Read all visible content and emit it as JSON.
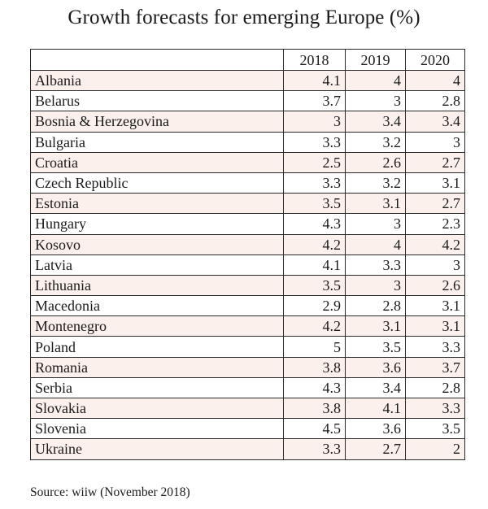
{
  "title": "Growth forecasts for emerging Europe (%)",
  "table": {
    "columns": [
      "",
      "2018",
      "2019",
      "2020"
    ],
    "rows": [
      {
        "country": "Albania",
        "values": [
          "4.1",
          "4",
          "4"
        ]
      },
      {
        "country": "Belarus",
        "values": [
          "3.7",
          "3",
          "2.8"
        ]
      },
      {
        "country": "Bosnia & Herzegovina",
        "values": [
          "3",
          "3.4",
          "3.4"
        ]
      },
      {
        "country": "Bulgaria",
        "values": [
          "3.3",
          "3.2",
          "3"
        ]
      },
      {
        "country": "Croatia",
        "values": [
          "2.5",
          "2.6",
          "2.7"
        ]
      },
      {
        "country": "Czech Republic",
        "values": [
          "3.3",
          "3.2",
          "3.1"
        ]
      },
      {
        "country": "Estonia",
        "values": [
          "3.5",
          "3.1",
          "2.7"
        ]
      },
      {
        "country": "Hungary",
        "values": [
          "4.3",
          "3",
          "2.3"
        ]
      },
      {
        "country": "Kosovo",
        "values": [
          "4.2",
          "4",
          "4.2"
        ]
      },
      {
        "country": "Latvia",
        "values": [
          "4.1",
          "3.3",
          "3"
        ]
      },
      {
        "country": "Lithuania",
        "values": [
          "3.5",
          "3",
          "2.6"
        ]
      },
      {
        "country": "Macedonia",
        "values": [
          "2.9",
          "2.8",
          "3.1"
        ]
      },
      {
        "country": "Montenegro",
        "values": [
          "4.2",
          "3.1",
          "3.1"
        ]
      },
      {
        "country": "Poland",
        "values": [
          "5",
          "3.5",
          "3.3"
        ]
      },
      {
        "country": "Romania",
        "values": [
          "3.8",
          "3.6",
          "3.7"
        ]
      },
      {
        "country": "Serbia",
        "values": [
          "4.3",
          "3.4",
          "2.8"
        ]
      },
      {
        "country": "Slovakia",
        "values": [
          "3.8",
          "4.1",
          "3.3"
        ]
      },
      {
        "country": "Slovenia",
        "values": [
          "4.5",
          "3.6",
          "3.5"
        ]
      },
      {
        "country": "Ukraine",
        "values": [
          "3.3",
          "2.7",
          "2"
        ]
      }
    ]
  },
  "source": "Source: wiiw (November 2018)",
  "colors": {
    "shaded_row": "#fcf0ec",
    "border": "#2a2a2a",
    "text": "#1a1a1a"
  }
}
